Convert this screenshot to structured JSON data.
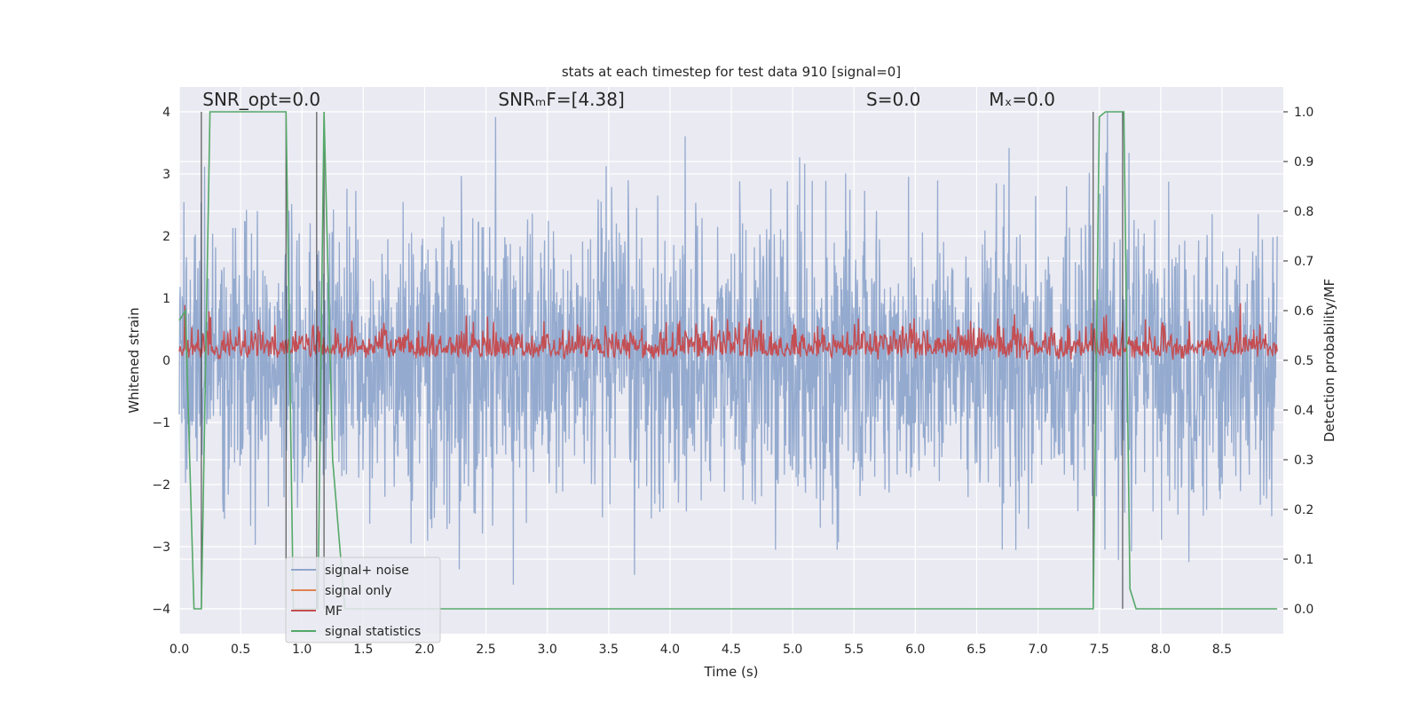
{
  "chart_data": {
    "type": "line",
    "title": "stats at each timestep for test data 910 [signal=0]",
    "xlabel": "Time (s)",
    "ylabel": "Whitened strain",
    "y2label": "Detection probability/MF",
    "xlim": [
      0.0,
      9.0
    ],
    "ylim": [
      -4.4,
      4.4
    ],
    "y2lim": [
      -0.05,
      1.05
    ],
    "xticks": [
      "0.0",
      "0.5",
      "1.0",
      "1.5",
      "2.0",
      "2.5",
      "3.0",
      "3.5",
      "4.0",
      "4.5",
      "5.0",
      "5.5",
      "6.0",
      "6.5",
      "7.0",
      "7.5",
      "8.0",
      "8.5"
    ],
    "yticks": [
      "4",
      "3",
      "2",
      "1",
      "0",
      "−1",
      "−2",
      "−3",
      "−4"
    ],
    "y2ticks": [
      "1.0",
      "0.9",
      "0.8",
      "0.7",
      "0.6",
      "0.5",
      "0.4",
      "0.3",
      "0.2",
      "0.1",
      "0.0"
    ],
    "grid": true,
    "legend_placement": "lower-left",
    "annotations": [
      {
        "text": "SNR_opt=0.0",
        "x": 0.19,
        "y": 4.1
      },
      {
        "text": "SNRₘF=[4.38]",
        "x": 2.6,
        "y": 4.1
      },
      {
        "text": "S=0.0",
        "x": 5.6,
        "y": 4.1
      },
      {
        "text": "Mₓ=0.0",
        "x": 6.6,
        "y": 4.1
      }
    ],
    "series": [
      {
        "name": "signal+ noise",
        "color": "#8fa6cc",
        "axis": "left",
        "description_values": "noise, whitened strain within approx -3.8 to 4.0"
      },
      {
        "name": "signal only",
        "color": "#dd8452",
        "axis": "left",
        "values": []
      },
      {
        "name": "MF",
        "color": "#c44e52",
        "axis": "right",
        "range": [
          0.5,
          0.61
        ]
      },
      {
        "name": "signal statistics",
        "color": "#55a868",
        "axis": "right",
        "x": [
          0.0,
          0.05,
          0.12,
          0.18,
          0.25,
          0.87,
          0.93,
          1.13,
          1.18,
          1.25,
          1.35,
          7.45,
          7.5,
          7.55,
          7.7,
          7.75,
          7.8,
          8.95
        ],
        "values": [
          0.58,
          0.6,
          0.0,
          0.0,
          1.0,
          1.0,
          0.0,
          0.0,
          1.0,
          0.3,
          0.0,
          0.0,
          0.99,
          1.0,
          1.0,
          0.04,
          0.0,
          0.0
        ]
      }
    ],
    "vlines_x": [
      0.18,
      0.87,
      1.12,
      1.18,
      7.45,
      7.69
    ]
  }
}
